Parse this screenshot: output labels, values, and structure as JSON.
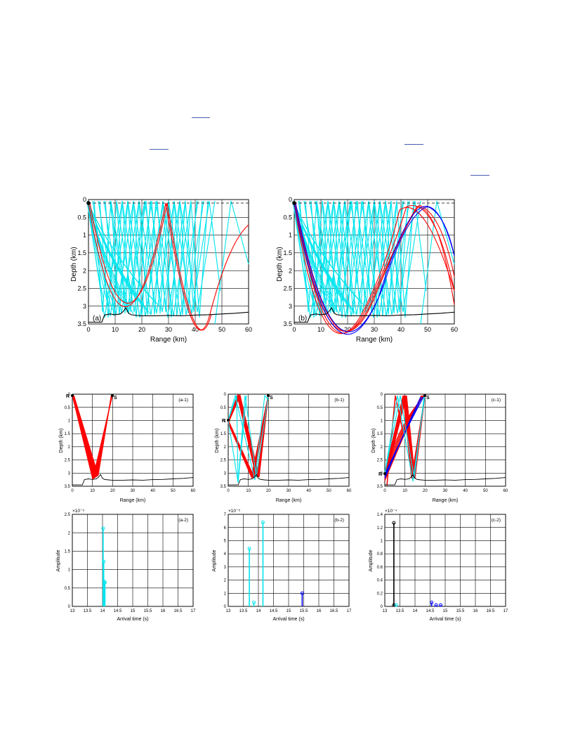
{
  "colors": {
    "direct": "#ff0000",
    "surface": "#00e5ee",
    "bottom": "#0000ff",
    "black": "#000000",
    "link": "#4a5db0"
  },
  "icons": [
    "source-marker",
    "receiver-marker"
  ],
  "figure_top": {
    "panels": [
      {
        "id": "a",
        "label": "(a)",
        "xlabel": "Range (km)",
        "ylabel": "Depth (km)",
        "xticks": [
          "0",
          "10",
          "20",
          "30",
          "40",
          "50",
          "60"
        ],
        "yticks": [
          "0",
          "0.5",
          "1",
          "1.5",
          "2",
          "2.5",
          "3",
          "3.5"
        ]
      },
      {
        "id": "b",
        "label": "(b)",
        "xlabel": "Range (km)",
        "ylabel": "Depth (km)",
        "xticks": [
          "0",
          "10",
          "20",
          "30",
          "40",
          "50",
          "60"
        ],
        "yticks": [
          "0",
          "0.5",
          "1",
          "1.5",
          "2",
          "2.5",
          "3",
          "3.5"
        ]
      }
    ]
  },
  "figure_bottom": {
    "ray_panels": [
      {
        "id": "a-1",
        "label": "(a-1)",
        "xlabel": "Range (km)",
        "ylabel": "Depth (km)",
        "receiver_label": "R",
        "source_label": "S",
        "xticks": [
          "0",
          "10",
          "20",
          "30",
          "40",
          "50",
          "60"
        ],
        "yticks": [
          "0",
          "0.5",
          "1",
          "1.5",
          "2",
          "2.5",
          "3",
          "3.5"
        ]
      },
      {
        "id": "b-1",
        "label": "(b-1)",
        "xlabel": "Range (km)",
        "ylabel": "Depth (km)",
        "receiver_label": "R",
        "source_label": "S",
        "xticks": [
          "0",
          "10",
          "20",
          "30",
          "40",
          "50",
          "60"
        ],
        "yticks": [
          "0",
          "0.5",
          "1",
          "1.5",
          "2",
          "2.5",
          "3",
          "3.5"
        ]
      },
      {
        "id": "c-1",
        "label": "(c-1)",
        "xlabel": "Range (km)",
        "ylabel": "Depth (km)",
        "receiver_label": "R",
        "source_label": "S",
        "xticks": [
          "0",
          "10",
          "20",
          "30",
          "40",
          "50",
          "60"
        ],
        "yticks": [
          "0",
          "0.5",
          "1",
          "1.5",
          "2",
          "2.5",
          "3",
          "3.5"
        ]
      }
    ],
    "amp_panels": [
      {
        "id": "a-2",
        "label": "(a-2)",
        "xlabel": "Arrival time (s)",
        "ylabel": "Amplitude",
        "exponent": "×10⁻⁵",
        "xticks": [
          "13",
          "13.5",
          "14",
          "14.5",
          "15",
          "15.5",
          "16",
          "16.5",
          "17"
        ],
        "yticks": [
          "0",
          "0.5",
          "1",
          "1.5",
          "2",
          "2.5"
        ]
      },
      {
        "id": "b-2",
        "label": "(b-2)",
        "xlabel": "Arrival time (s)",
        "ylabel": "Amplitude",
        "exponent": "×10⁻⁶",
        "xticks": [
          "13",
          "13.5",
          "14",
          "14.5",
          "15",
          "15.5",
          "16",
          "16.5",
          "17"
        ],
        "yticks": [
          "0",
          "1",
          "2",
          "3",
          "4",
          "5",
          "6",
          "7"
        ]
      },
      {
        "id": "c-2",
        "label": "(c-2)",
        "xlabel": "Arrival time (s)",
        "ylabel": "Amplitude",
        "exponent": "×10⁻⁴",
        "xticks": [
          "13",
          "13.5",
          "14",
          "14.5",
          "15",
          "15.5",
          "16",
          "16.5",
          "17"
        ],
        "yticks": [
          "0",
          "0.2",
          "0.4",
          "0.6",
          "0.8",
          "1",
          "1.2",
          "1.4"
        ]
      }
    ]
  },
  "chart_data": [
    {
      "type": "line",
      "panel": "a",
      "xlabel": "Range (km)",
      "ylabel": "Depth (km)",
      "xlim": [
        0,
        60
      ],
      "ylim": [
        3.5,
        0
      ],
      "source": {
        "x": 0,
        "y": 0.1
      },
      "dashed_depth": 0.1,
      "bathymetry": {
        "x": [
          0,
          5,
          6,
          8,
          10,
          12,
          13,
          14,
          15,
          16,
          18,
          20,
          25,
          30,
          35,
          40,
          45,
          50,
          55,
          60
        ],
        "y": [
          3.45,
          3.45,
          3.25,
          3.22,
          3.24,
          3.22,
          3.15,
          3.05,
          3.2,
          3.24,
          3.26,
          3.27,
          3.27,
          3.26,
          3.27,
          3.25,
          3.24,
          3.22,
          3.2,
          3.17
        ]
      },
      "series": [
        {
          "color": "direct",
          "ray_type": "double-arc",
          "bounces_x": [
            0,
            29,
            46
          ],
          "count": 2,
          "end_x": 60,
          "end_y": 0.5
        },
        {
          "color": "surface",
          "ray_type": "surface-bottom reflections",
          "dense_region_x": [
            5,
            40
          ],
          "extra_x": [
            53
          ]
        }
      ]
    },
    {
      "type": "line",
      "panel": "b",
      "xlabel": "Range (km)",
      "ylabel": "Depth (km)",
      "xlim": [
        0,
        60
      ],
      "ylim": [
        3.5,
        0
      ],
      "source": {
        "x": 0,
        "y": 0.1
      },
      "dashed_depth": 0.1,
      "series": [
        {
          "color": "direct",
          "arcs_top_x": [
            38,
            45,
            50
          ],
          "end_depths": [
            2.15,
            2.95
          ]
        },
        {
          "color": "bottom",
          "arcs_top_x": [
            42,
            51
          ],
          "end_depths": [
            1.7
          ]
        },
        {
          "color": "surface",
          "dense_region_x": [
            5,
            42
          ]
        }
      ]
    },
    {
      "type": "line",
      "panel": "a-1",
      "xlabel": "Range (km)",
      "ylabel": "Depth (km)",
      "xlim": [
        0,
        60
      ],
      "ylim": [
        3.5,
        0
      ],
      "receiver": {
        "x": 0,
        "y": 0.05
      },
      "source": {
        "x": 20,
        "y": 0.05
      },
      "series": [
        {
          "color": "direct",
          "vertex_x": 11,
          "vertex_y": 3.2
        }
      ]
    },
    {
      "type": "line",
      "panel": "b-1",
      "xlabel": "Range (km)",
      "ylabel": "Depth (km)",
      "xlim": [
        0,
        60
      ],
      "ylim": [
        3.5,
        0
      ],
      "receiver": {
        "x": 0,
        "y": 1.0
      },
      "source": {
        "x": 20,
        "y": 0.05
      },
      "series": [
        {
          "color": "direct"
        },
        {
          "color": "surface"
        }
      ]
    },
    {
      "type": "line",
      "panel": "c-1",
      "xlabel": "Range (km)",
      "ylabel": "Depth (km)",
      "xlim": [
        0,
        60
      ],
      "ylim": [
        3.5,
        0
      ],
      "receiver": {
        "x": 0,
        "y": 3.0
      },
      "source": {
        "x": 20,
        "y": 0.05
      },
      "series": [
        {
          "color": "direct"
        },
        {
          "color": "bottom"
        },
        {
          "color": "surface"
        }
      ]
    },
    {
      "type": "stem",
      "panel": "a-2",
      "xlabel": "Arrival time (s)",
      "ylabel": "Amplitude",
      "xlim": [
        13,
        17
      ],
      "ylim": [
        0,
        2.5
      ],
      "scale": "1e-5",
      "stems": [
        {
          "x": 14.02,
          "y": 2.12,
          "color": "surface"
        },
        {
          "x": 14.04,
          "y": 1.22,
          "color": "surface"
        },
        {
          "x": 14.06,
          "y": 0.67,
          "color": "surface"
        },
        {
          "x": 14.08,
          "y": 0.65,
          "color": "surface"
        }
      ]
    },
    {
      "type": "stem",
      "panel": "b-2",
      "xlabel": "Arrival time (s)",
      "ylabel": "Amplitude",
      "xlim": [
        13,
        17
      ],
      "ylim": [
        0,
        7
      ],
      "scale": "1e-6",
      "stems": [
        {
          "x": 13.7,
          "y": 4.4,
          "color": "surface"
        },
        {
          "x": 13.85,
          "y": 0.3,
          "color": "surface"
        },
        {
          "x": 14.15,
          "y": 6.4,
          "color": "surface"
        },
        {
          "x": 15.45,
          "y": 1.0,
          "color": "bottom"
        }
      ]
    },
    {
      "type": "stem",
      "panel": "c-2",
      "xlabel": "Arrival time (s)",
      "ylabel": "Amplitude",
      "xlim": [
        13,
        17
      ],
      "ylim": [
        0,
        1.4
      ],
      "scale": "1e-4",
      "stems": [
        {
          "x": 13.3,
          "y": 1.27,
          "color": "black"
        },
        {
          "x": 13.3,
          "y": 0.02,
          "color": "black"
        },
        {
          "x": 13.38,
          "y": 0.02,
          "color": "surface"
        },
        {
          "x": 14.55,
          "y": 0.06,
          "color": "bottom"
        },
        {
          "x": 14.7,
          "y": 0.02,
          "color": "bottom"
        },
        {
          "x": 14.85,
          "y": 0.02,
          "color": "bottom"
        }
      ]
    }
  ]
}
